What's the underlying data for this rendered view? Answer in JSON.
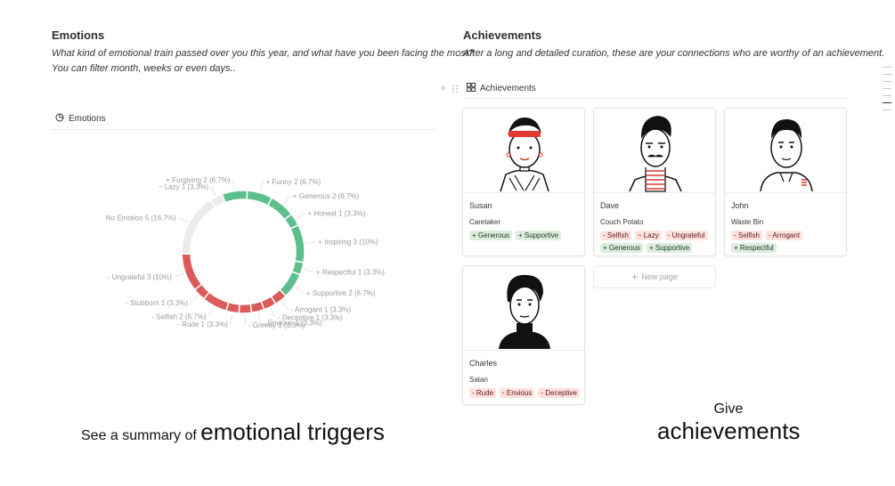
{
  "emotions": {
    "title": "Emotions",
    "description_line1": "What kind of emotional train passed over you this year, and what have you been facing the most?",
    "description_line2": "You can filter month, weeks or even days..",
    "view_label": "Emotions"
  },
  "achievements": {
    "title": "Achievements",
    "description": "After a long and detailed curation, these are your connections who are worthy of an achievement.",
    "view_label": "Achievements",
    "new_page_label": "New page",
    "cards": [
      {
        "name": "Susan",
        "role": "Caretaker",
        "tags": [
          {
            "text": "+ Generous",
            "kind": "pos"
          },
          {
            "text": "+ Supportive",
            "kind": "pos"
          }
        ]
      },
      {
        "name": "Dave",
        "role": "Couch Potato",
        "tags": [
          {
            "text": "- Selfish",
            "kind": "neg"
          },
          {
            "text": "~ Lazy",
            "kind": "neg"
          },
          {
            "text": "- Ungrateful",
            "kind": "neg"
          },
          {
            "text": "+ Generous",
            "kind": "pos"
          },
          {
            "text": "+ Supportive",
            "kind": "pos"
          }
        ]
      },
      {
        "name": "John",
        "role": "Waste Bin",
        "tags": [
          {
            "text": "- Selfish",
            "kind": "neg"
          },
          {
            "text": "- Arrogant",
            "kind": "neg"
          },
          {
            "text": "+ Respectful",
            "kind": "pos"
          }
        ]
      },
      {
        "name": "Charles",
        "role": "Satan",
        "tags": [
          {
            "text": "- Rude",
            "kind": "neg"
          },
          {
            "text": "- Envious",
            "kind": "neg"
          },
          {
            "text": "- Deceptive",
            "kind": "neg"
          }
        ]
      }
    ]
  },
  "captions": {
    "left_small": "See a summary of",
    "left_big": "emotional triggers",
    "right_small": "Give",
    "right_big": "achievements"
  },
  "colors": {
    "positive": "#5cbf8c",
    "negative": "#dc5a59",
    "neutral": "#ebebea"
  },
  "chart_data": {
    "type": "donut",
    "slices": [
      {
        "label": "+ Forgiving",
        "value": 2,
        "percent": "6.7%",
        "group": "positive"
      },
      {
        "label": "+ Funny",
        "value": 2,
        "percent": "6.7%",
        "group": "positive"
      },
      {
        "label": "+ Generous",
        "value": 2,
        "percent": "6.7%",
        "group": "positive"
      },
      {
        "label": "+ Honest",
        "value": 1,
        "percent": "3.3%",
        "group": "positive"
      },
      {
        "label": "+ Inspiring",
        "value": 3,
        "percent": "10%",
        "group": "positive"
      },
      {
        "label": "+ Respectful",
        "value": 1,
        "percent": "3.3%",
        "group": "positive"
      },
      {
        "label": "+ Supportive",
        "value": 2,
        "percent": "6.7%",
        "group": "positive"
      },
      {
        "label": "- Arrogant",
        "value": 1,
        "percent": "3.3%",
        "group": "negative"
      },
      {
        "label": "- Deceptive",
        "value": 1,
        "percent": "3.3%",
        "group": "negative"
      },
      {
        "label": "- Envious",
        "value": 1,
        "percent": "3.3%",
        "group": "negative"
      },
      {
        "label": "- Greedy",
        "value": 1,
        "percent": "3.3%",
        "group": "negative"
      },
      {
        "label": "- Rude",
        "value": 1,
        "percent": "3.3%",
        "group": "negative"
      },
      {
        "label": "- Selfish",
        "value": 2,
        "percent": "6.7%",
        "group": "negative"
      },
      {
        "label": "- Stubborn",
        "value": 1,
        "percent": "3.3%",
        "group": "negative"
      },
      {
        "label": "- Ungrateful",
        "value": 3,
        "percent": "10%",
        "group": "negative"
      },
      {
        "label": "No Emotion",
        "value": 5,
        "percent": "16.7%",
        "group": "neutral"
      },
      {
        "label": "~ Lazy",
        "value": 1,
        "percent": "3.3%",
        "group": "neutral"
      }
    ]
  }
}
